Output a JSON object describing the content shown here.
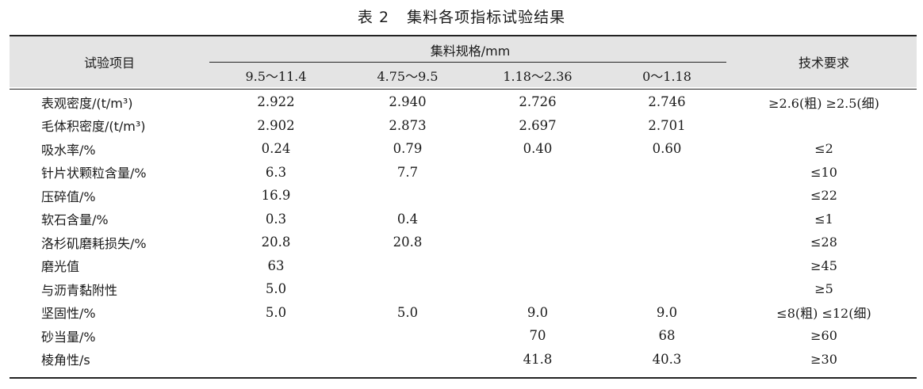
{
  "caption": {
    "number": "表 2",
    "title": "集料各项指标试验结果"
  },
  "header": {
    "item_col": "试验项目",
    "group_label": "集料规格/mm",
    "sizes": [
      "9.5～11.4",
      "4.75～9.5",
      "1.18～2.36",
      "0～1.18"
    ],
    "req_col": "技术要求"
  },
  "rows": [
    {
      "item": "表观密度/(t/m³)",
      "v": [
        "2.922",
        "2.940",
        "2.726",
        "2.746"
      ],
      "req": "≥2.6(粗) ≥2.5(细)"
    },
    {
      "item": "毛体积密度/(t/m³)",
      "v": [
        "2.902",
        "2.873",
        "2.697",
        "2.701"
      ],
      "req": ""
    },
    {
      "item": "吸水率/%",
      "v": [
        "0.24",
        "0.79",
        "0.40",
        "0.60"
      ],
      "req": "≤2"
    },
    {
      "item": "针片状颗粒含量/%",
      "v": [
        "6.3",
        "7.7",
        "",
        ""
      ],
      "req": "≤10"
    },
    {
      "item": "压碎值/%",
      "v": [
        "16.9",
        "",
        "",
        ""
      ],
      "req": "≤22"
    },
    {
      "item": "软石含量/%",
      "v": [
        "0.3",
        "0.4",
        "",
        ""
      ],
      "req": "≤1"
    },
    {
      "item": "洛杉矶磨耗损失/%",
      "v": [
        "20.8",
        "20.8",
        "",
        ""
      ],
      "req": "≤28"
    },
    {
      "item": "磨光值",
      "v": [
        "63",
        "",
        "",
        ""
      ],
      "req": "≥45"
    },
    {
      "item": "与沥青黏附性",
      "v": [
        "5.0",
        "",
        "",
        ""
      ],
      "req": "≥5"
    },
    {
      "item": "坚固性/%",
      "v": [
        "5.0",
        "5.0",
        "9.0",
        "9.0"
      ],
      "req": "≤8(粗) ≤12(细)"
    },
    {
      "item": "砂当量/%",
      "v": [
        "",
        "",
        "70",
        "68"
      ],
      "req": "≥60"
    },
    {
      "item": "棱角性/s",
      "v": [
        "",
        "",
        "41.8",
        "40.3"
      ],
      "req": "≥30"
    }
  ]
}
